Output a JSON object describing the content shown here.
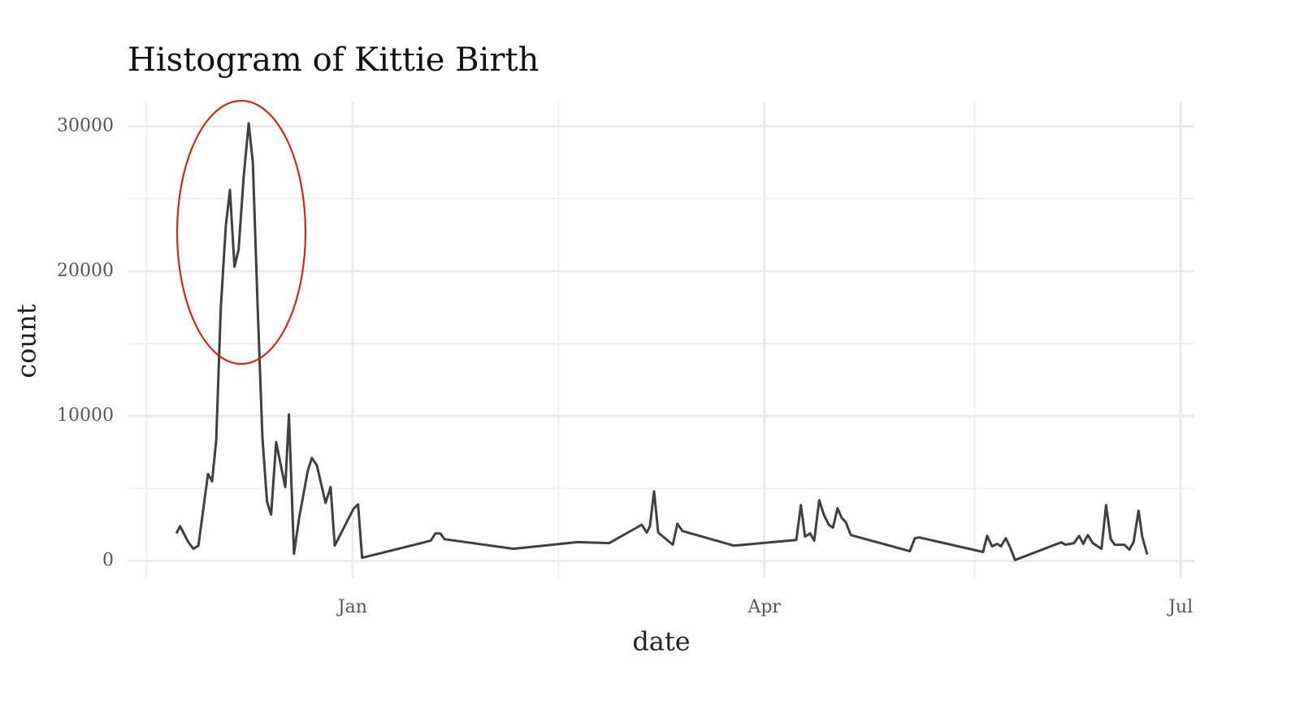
{
  "chart_data": {
    "type": "line",
    "title": "Histogram of Kittie Birth",
    "x_label": "date",
    "y_label": "count",
    "x": [
      -38.5,
      -37.7,
      -35.9,
      -34.8,
      -33.7,
      -31.6,
      -30.7,
      -29.8,
      -28.8,
      -27.7,
      -26.8,
      -25.8,
      -24.9,
      -23.8,
      -22.7,
      -21.8,
      -20.8,
      -19.7,
      -18.7,
      -17.8,
      -16.7,
      -15.8,
      -14.7,
      -13.9,
      -12.8,
      -11.7,
      -9.8,
      -8.9,
      -7.8,
      -6.7,
      -5.9,
      -4.8,
      -3.9,
      0.2,
      1.2,
      2.1,
      17.1,
      18.1,
      19.2,
      20.1,
      35.2,
      49.2,
      56.1,
      63.2,
      64.3,
      65.0,
      65.9,
      66.8,
      70.0,
      71.0,
      72.1,
      83.3,
      97.0,
      98.0,
      98.9,
      100.0,
      100.9,
      102.0,
      103.0,
      104.1,
      105.0,
      106.0,
      106.9,
      107.8,
      108.9,
      121.8,
      122.9,
      123.9,
      137.8,
      138.7,
      139.8,
      140.9,
      141.7,
      142.8,
      143.7,
      144.8,
      154.9,
      155.8,
      157.7,
      158.8,
      159.7,
      160.7,
      161.8,
      163.7,
      164.7,
      165.7,
      166.6,
      168.7,
      169.8,
      170.7,
      171.8,
      172.6,
      173.7
    ],
    "series": [
      {
        "name": "count",
        "color": "#404040",
        "values": [
          1900,
          2400,
          1300,
          840,
          1060,
          6000,
          5500,
          8300,
          17400,
          23100,
          25600,
          20300,
          21500,
          26500,
          30200,
          27500,
          18000,
          8500,
          4100,
          3200,
          8200,
          6800,
          5100,
          10100,
          500,
          2900,
          6200,
          7100,
          6600,
          5100,
          4000,
          5100,
          1060,
          3600,
          3900,
          220,
          1400,
          1900,
          1900,
          1500,
          840,
          1300,
          1230,
          2500,
          1960,
          2400,
          4800,
          1960,
          1120,
          2570,
          2070,
          1060,
          1450,
          3860,
          1680,
          1900,
          1400,
          4200,
          3200,
          2500,
          2300,
          3640,
          2970,
          2690,
          1790,
          670,
          1570,
          1620,
          620,
          1730,
          1010,
          1180,
          1010,
          1570,
          950,
          60,
          1290,
          1120,
          1230,
          1730,
          1180,
          1790,
          1230,
          840,
          3860,
          1510,
          1120,
          1120,
          780,
          1290,
          3470,
          1680,
          450
        ]
      }
    ],
    "xlim": [
      -49,
      184
    ],
    "xticks": [
      {
        "value": 0,
        "label": "Jan"
      },
      {
        "value": 90,
        "label": "Apr"
      },
      {
        "value": 181,
        "label": "Jul"
      }
    ],
    "xminor": [
      -45,
      45,
      136
    ],
    "ylim": [
      -1200,
      31700
    ],
    "yticks": [
      0,
      10000,
      20000,
      30000
    ],
    "yminor": [
      5000,
      15000,
      25000
    ],
    "grid": true
  }
}
